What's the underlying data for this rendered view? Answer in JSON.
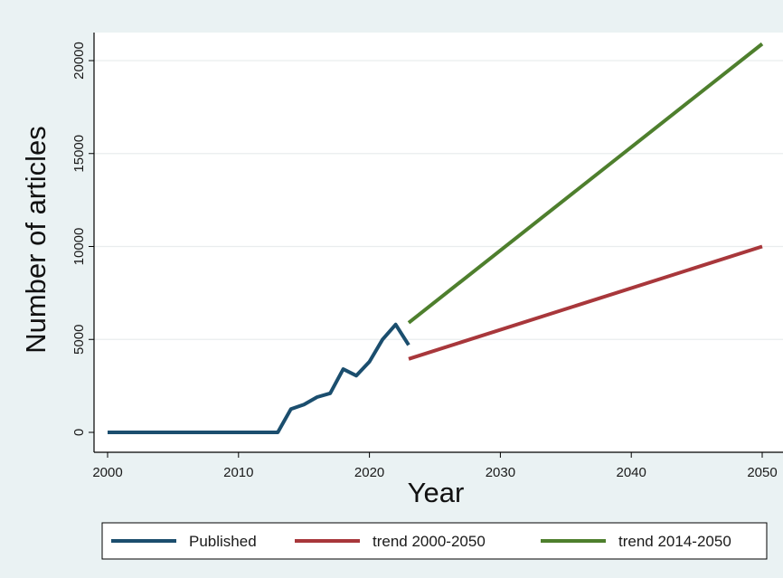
{
  "chart_data": {
    "type": "line",
    "title": "",
    "xlabel": "Year",
    "ylabel": "Number of articles",
    "xlim": [
      2000,
      2050
    ],
    "ylim": [
      0,
      20000
    ],
    "x_ticks": [
      2000,
      2010,
      2020,
      2030,
      2040,
      2050
    ],
    "x_tick_labels": [
      "2000",
      "2010",
      "2020",
      "2030",
      "2040",
      "2050"
    ],
    "y_ticks": [
      0,
      5000,
      10000,
      15000,
      20000
    ],
    "y_tick_labels": [
      "0",
      "5000",
      "10000",
      "15000",
      "20000"
    ],
    "grid": "horizontal",
    "legend_position": "bottom",
    "series": [
      {
        "name": "Published",
        "color": "#1b4e6e",
        "points": [
          [
            2000,
            0
          ],
          [
            2001,
            0
          ],
          [
            2002,
            0
          ],
          [
            2003,
            0
          ],
          [
            2004,
            0
          ],
          [
            2005,
            0
          ],
          [
            2006,
            0
          ],
          [
            2007,
            0
          ],
          [
            2008,
            0
          ],
          [
            2009,
            0
          ],
          [
            2010,
            0
          ],
          [
            2011,
            0
          ],
          [
            2012,
            0
          ],
          [
            2013,
            0
          ],
          [
            2014,
            1250
          ],
          [
            2015,
            1500
          ],
          [
            2016,
            1900
          ],
          [
            2017,
            2100
          ],
          [
            2018,
            3400
          ],
          [
            2019,
            3050
          ],
          [
            2020,
            3800
          ],
          [
            2021,
            5000
          ],
          [
            2022,
            5800
          ],
          [
            2023,
            4700
          ]
        ]
      },
      {
        "name": "trend 2000-2050",
        "color": "#a8373b",
        "points": [
          [
            2023,
            3950
          ],
          [
            2050,
            10000
          ]
        ]
      },
      {
        "name": "trend 2014-2050",
        "color": "#4e7f2d",
        "points": [
          [
            2023,
            5900
          ],
          [
            2050,
            20900
          ]
        ]
      }
    ]
  }
}
